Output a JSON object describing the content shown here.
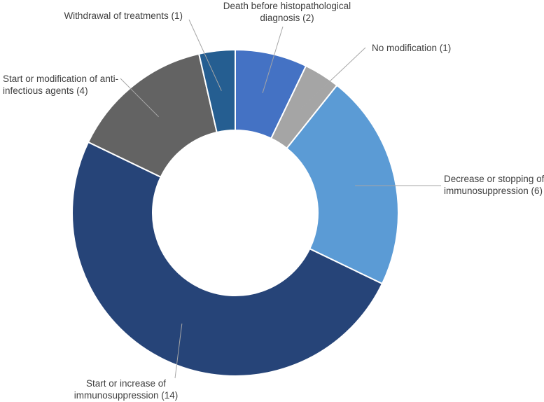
{
  "chart_data": {
    "type": "pie",
    "donut": true,
    "total": 28,
    "slices": [
      {
        "label_lines": [
          "Death before histopathological",
          "diagnosis (2)"
        ],
        "value": 2,
        "color": "#4472C4"
      },
      {
        "label_lines": [
          "No modification (1)"
        ],
        "value": 1,
        "color": "#A5A5A5"
      },
      {
        "label_lines": [
          "Decrease or stopping of",
          "immunosuppression (6)"
        ],
        "value": 6,
        "color": "#5B9BD5"
      },
      {
        "label_lines": [
          "Start or increase of",
          "immunosuppression (14)"
        ],
        "value": 14,
        "color": "#264478"
      },
      {
        "label_lines": [
          "Start or modification of anti-",
          "infectious agents (4)"
        ],
        "value": 4,
        "color": "#636363"
      },
      {
        "label_lines": [
          "Withdrawal of treatments (1)"
        ],
        "value": 1,
        "color": "#255E91"
      }
    ],
    "legend": "none",
    "data_labels": "outside with leader lines"
  }
}
